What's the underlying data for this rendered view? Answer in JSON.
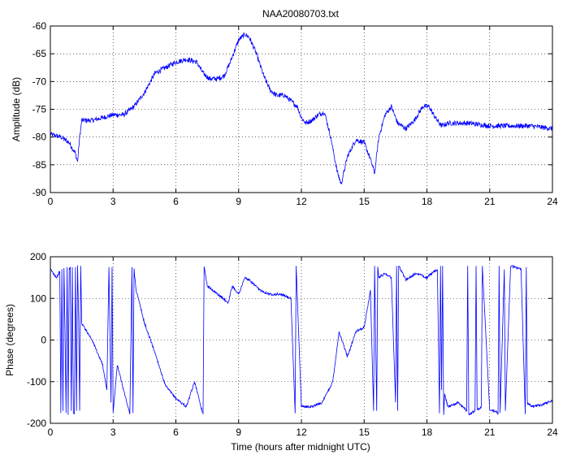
{
  "chart_data": [
    {
      "type": "line",
      "title": "NAA20080703.txt",
      "xlabel": "",
      "ylabel": "Amplitude (dB)",
      "xlim": [
        0,
        24
      ],
      "ylim": [
        -90,
        -60
      ],
      "xticks": [
        0,
        3,
        6,
        9,
        12,
        15,
        18,
        21,
        24
      ],
      "xtick_labels": [
        "0",
        "3",
        "6",
        "9",
        "12",
        "15",
        "18",
        "21",
        "24"
      ],
      "yticks": [
        -90,
        -85,
        -80,
        -75,
        -70,
        -65,
        -60
      ],
      "ytick_labels": [
        "-90",
        "-85",
        "-80",
        "-75",
        "-70",
        "-65",
        "-60"
      ],
      "grid": true,
      "color": "#0000ff",
      "x": [
        0,
        0.5,
        0.9,
        1.2,
        1.3,
        1.4,
        1.5,
        2.0,
        2.5,
        3.0,
        3.5,
        4.0,
        4.5,
        5.0,
        5.5,
        6.0,
        6.5,
        7.0,
        7.3,
        7.6,
        8.0,
        8.3,
        8.6,
        9.0,
        9.3,
        9.5,
        9.8,
        10.2,
        10.5,
        10.8,
        11.2,
        11.5,
        11.8,
        12.0,
        12.2,
        12.5,
        12.8,
        13.1,
        13.4,
        13.7,
        13.9,
        14.2,
        14.6,
        15.0,
        15.3,
        15.5,
        15.7,
        16.0,
        16.3,
        16.6,
        17.0,
        17.4,
        17.8,
        18.1,
        18.4,
        18.7,
        19.0,
        19.5,
        20.0,
        21.0,
        22.0,
        23.0,
        24.0
      ],
      "values": [
        -79.5,
        -80.0,
        -81.0,
        -83.0,
        -84.5,
        -80.0,
        -77.0,
        -77.0,
        -76.5,
        -76.0,
        -76.0,
        -74.5,
        -72.0,
        -68.5,
        -67.5,
        -66.5,
        -66.0,
        -66.5,
        -68.5,
        -69.5,
        -69.5,
        -69.0,
        -66.5,
        -62.5,
        -61.5,
        -62.0,
        -64.5,
        -69.0,
        -71.5,
        -72.5,
        -72.5,
        -73.5,
        -74.5,
        -76.5,
        -77.5,
        -77.0,
        -76.0,
        -75.5,
        -80.0,
        -86.0,
        -88.5,
        -83.5,
        -80.5,
        -81.0,
        -84.0,
        -86.5,
        -80.0,
        -76.0,
        -74.5,
        -77.5,
        -78.5,
        -77.0,
        -74.5,
        -74.5,
        -76.5,
        -78.0,
        -77.5,
        -77.5,
        -77.5,
        -78.0,
        -78.0,
        -78.0,
        -78.5
      ]
    },
    {
      "type": "line",
      "title": "",
      "xlabel": "Time (hours after midnight UTC)",
      "ylabel": "Phase (degrees)",
      "xlim": [
        0,
        24
      ],
      "ylim": [
        -200,
        200
      ],
      "xticks": [
        0,
        3,
        6,
        9,
        12,
        15,
        18,
        21,
        24
      ],
      "xtick_labels": [
        "0",
        "3",
        "6",
        "9",
        "12",
        "15",
        "18",
        "21",
        "24"
      ],
      "yticks": [
        -200,
        -100,
        0,
        100,
        200
      ],
      "ytick_labels": [
        "-200",
        "-100",
        "0",
        "100",
        "200"
      ],
      "grid": true,
      "color": "#0000ff",
      "x": [
        0,
        0.3,
        0.45,
        0.5,
        0.55,
        0.6,
        0.65,
        0.7,
        0.75,
        0.8,
        0.85,
        0.9,
        0.95,
        1.0,
        1.05,
        1.1,
        1.15,
        1.2,
        1.25,
        1.3,
        1.35,
        1.4,
        1.45,
        1.5,
        2.0,
        2.5,
        2.7,
        2.8,
        2.9,
        2.95,
        3.0,
        3.2,
        3.5,
        3.8,
        3.9,
        3.95,
        4.0,
        4.1,
        4.5,
        5.0,
        5.5,
        6.0,
        6.5,
        6.9,
        7.2,
        7.3,
        7.35,
        7.5,
        8.0,
        8.5,
        8.7,
        9.0,
        9.3,
        9.6,
        10.0,
        10.5,
        11.0,
        11.5,
        11.7,
        11.75,
        12.0,
        12.5,
        13.0,
        13.5,
        13.8,
        14.2,
        14.6,
        15.0,
        15.3,
        15.45,
        15.5,
        15.6,
        15.65,
        15.7,
        16.0,
        16.3,
        16.5,
        16.55,
        16.6,
        16.65,
        17.0,
        17.5,
        18.0,
        18.5,
        18.6,
        18.65,
        18.7,
        18.75,
        18.8,
        18.85,
        19.0,
        19.5,
        19.9,
        19.95,
        20.0,
        20.3,
        20.35,
        20.4,
        20.6,
        20.65,
        21.0,
        21.3,
        21.4,
        21.45,
        21.5,
        21.7,
        21.75,
        22.0,
        22.5,
        22.7,
        22.75,
        22.8,
        23.0,
        23.5,
        24.0
      ],
      "values": [
        170,
        150,
        165,
        -175,
        170,
        -170,
        175,
        20,
        -175,
        175,
        -180,
        170,
        175,
        -170,
        175,
        -175,
        -178,
        175,
        -170,
        178,
        60,
        -170,
        178,
        40,
        0,
        -60,
        -120,
        175,
        -150,
        175,
        -175,
        -60,
        -120,
        -178,
        175,
        -175,
        170,
        120,
        40,
        -30,
        -110,
        -140,
        -160,
        -100,
        -160,
        -178,
        178,
        130,
        110,
        90,
        130,
        110,
        150,
        140,
        120,
        110,
        110,
        100,
        -176,
        178,
        -160,
        -160,
        -150,
        -100,
        20,
        -40,
        20,
        30,
        120,
        -170,
        178,
        -170,
        178,
        150,
        160,
        150,
        -150,
        178,
        -170,
        178,
        145,
        160,
        150,
        170,
        -176,
        178,
        -120,
        178,
        -178,
        -130,
        -160,
        -150,
        -170,
        178,
        -178,
        -170,
        178,
        -170,
        -160,
        178,
        -170,
        -170,
        -178,
        178,
        -175,
        170,
        -170,
        178,
        170,
        -178,
        175,
        -150,
        -160,
        -155,
        -145
      ]
    }
  ]
}
